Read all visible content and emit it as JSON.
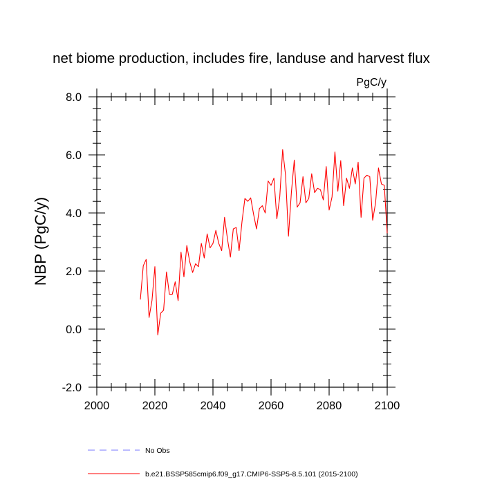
{
  "chart_data": {
    "type": "line",
    "title": "net biome production, includes fire, landuse and harvest flux",
    "units": "PgC/y",
    "ylabel": "NBP  (PgC/y)",
    "xlabel": "",
    "xlim": [
      2000,
      2100
    ],
    "ylim": [
      -2.0,
      8.0
    ],
    "x_ticks": [
      2000,
      2020,
      2040,
      2060,
      2080,
      2100
    ],
    "x_tick_labels": [
      "2000",
      "2020",
      "2040",
      "2060",
      "2080",
      "2100"
    ],
    "y_ticks": [
      -2.0,
      0.0,
      2.0,
      4.0,
      6.0,
      8.0
    ],
    "y_tick_labels": [
      "-2.0",
      "0.0",
      "2.0",
      "4.0",
      "6.0",
      "8.0"
    ],
    "grid": false,
    "legend_position": "bottom",
    "series": [
      {
        "name": "b.e21.BSSP585cmip6.f09_g17.CMIP6-SSP5-8.5.101 (2015-2100)",
        "color": "#ff0000",
        "style": "solid",
        "x": [
          2015,
          2016,
          2017,
          2018,
          2019,
          2020,
          2021,
          2022,
          2023,
          2024,
          2025,
          2026,
          2027,
          2028,
          2029,
          2030,
          2031,
          2032,
          2033,
          2034,
          2035,
          2036,
          2037,
          2038,
          2039,
          2040,
          2041,
          2042,
          2043,
          2044,
          2045,
          2046,
          2047,
          2048,
          2049,
          2050,
          2051,
          2052,
          2053,
          2054,
          2055,
          2056,
          2057,
          2058,
          2059,
          2060,
          2061,
          2062,
          2063,
          2064,
          2065,
          2066,
          2067,
          2068,
          2069,
          2070,
          2071,
          2072,
          2073,
          2074,
          2075,
          2076,
          2077,
          2078,
          2079,
          2080,
          2081,
          2082,
          2083,
          2084,
          2085,
          2086,
          2087,
          2088,
          2089,
          2090,
          2091,
          2092,
          2093,
          2094,
          2095,
          2096,
          2097,
          2098,
          2099,
          2100
        ],
        "values": [
          1.02,
          2.18,
          2.4,
          0.4,
          0.98,
          2.15,
          -0.2,
          0.55,
          0.65,
          1.97,
          1.2,
          1.2,
          1.63,
          0.98,
          2.65,
          1.8,
          2.88,
          2.32,
          1.95,
          2.25,
          2.15,
          2.95,
          2.45,
          3.28,
          2.8,
          2.95,
          3.4,
          2.95,
          2.7,
          3.85,
          3.1,
          2.48,
          3.45,
          3.5,
          2.7,
          3.7,
          4.5,
          4.4,
          4.52,
          3.95,
          3.45,
          4.15,
          4.25,
          4.0,
          5.1,
          4.95,
          5.2,
          3.8,
          4.55,
          6.18,
          5.3,
          3.2,
          4.7,
          5.82,
          4.2,
          4.35,
          5.25,
          4.35,
          4.5,
          5.35,
          4.7,
          4.85,
          4.8,
          4.45,
          5.6,
          4.1,
          4.55,
          6.1,
          4.75,
          5.8,
          4.25,
          5.2,
          4.85,
          5.55,
          5.0,
          5.75,
          3.85,
          5.2,
          5.3,
          5.25,
          3.75,
          4.35,
          5.55,
          5.0,
          4.95,
          3.3
        ]
      },
      {
        "name": "No Obs",
        "color": "#7777ff",
        "style": "dashed",
        "x": [],
        "values": []
      }
    ]
  }
}
